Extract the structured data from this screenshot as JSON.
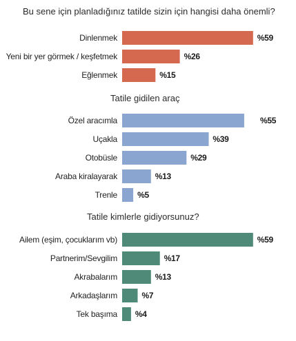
{
  "chart_data": [
    {
      "type": "bar",
      "orientation": "horizontal",
      "title": "Bu sene için planladığınız tatilde sizin için hangisi daha önemli?",
      "categories": [
        "Dinlenmek",
        "Yeni bir yer görmek / keşfetmek",
        "Eğlenmek"
      ],
      "values": [
        59,
        26,
        15
      ],
      "value_labels": [
        "%59",
        "%26",
        "%15"
      ],
      "color": "#d5694f",
      "xlim": [
        0,
        60
      ]
    },
    {
      "type": "bar",
      "orientation": "horizontal",
      "title": "Tatile gidilen araç",
      "categories": [
        "Özel aracımla",
        "Uçakla",
        "Otobüsle",
        "Araba kiralayarak",
        "Trenle"
      ],
      "values": [
        55,
        39,
        29,
        13,
        5
      ],
      "value_labels": [
        "%55",
        "%39",
        "%29",
        "%13",
        "%5"
      ],
      "color": "#8aa6d0",
      "xlim": [
        0,
        60
      ]
    },
    {
      "type": "bar",
      "orientation": "horizontal",
      "title": "Tatile kimlerle gidiyorsunuz?",
      "categories": [
        "Ailem (eşim, çocuklarım vb)",
        "Partnerim/Sevgilim",
        "Akrabalarım",
        "Arkadaşlarım",
        "Tek başıma"
      ],
      "values": [
        59,
        17,
        13,
        7,
        4
      ],
      "value_labels": [
        "%59",
        "%17",
        "%13",
        "%7",
        "%4"
      ],
      "color": "#4f8a79",
      "xlim": [
        0,
        60
      ]
    }
  ]
}
